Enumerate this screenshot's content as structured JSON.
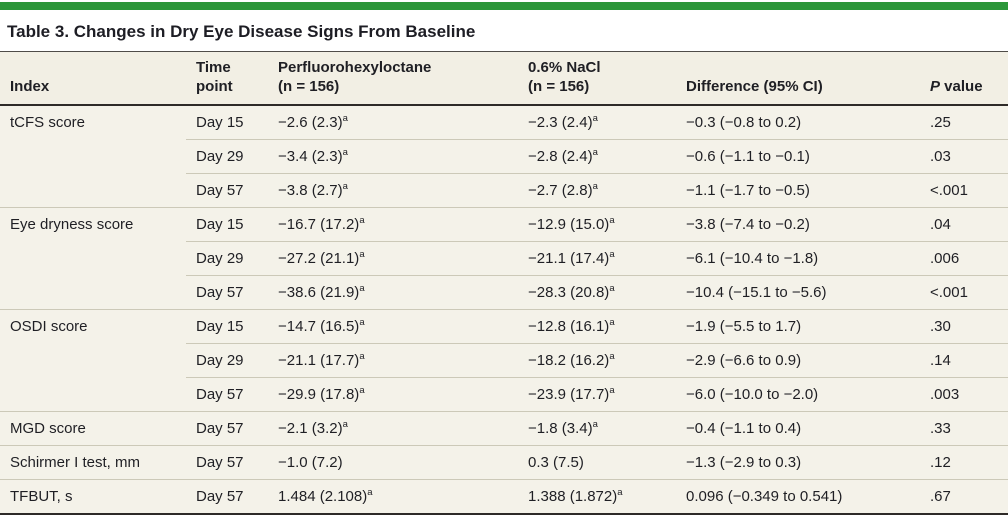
{
  "accent_color": "#2b9639",
  "colors": {
    "header_background": "#f2efe4",
    "row_background": "#f4f2e9",
    "rule_dark": "#2e2a28",
    "rule_light": "#ccc9b8",
    "text": "#1f1f24"
  },
  "table": {
    "title": "Table 3. Changes in Dry Eye Disease Signs From Baseline",
    "headers": {
      "index": "Index",
      "time_line1": "Time",
      "time_line2": "point",
      "drug_line1": "Perfluorohexyloctane",
      "drug_line2": "(n = 156)",
      "nacl_line1": "0.6% NaCl",
      "nacl_line2": "(n = 156)",
      "difference": "Difference (95% CI)",
      "p_italic": "P",
      "p_rest": " value"
    },
    "footnote_marker": "a",
    "groups": [
      {
        "index": "tCFS score",
        "rows": [
          {
            "time": "Day 15",
            "drug": "−2.6 (2.3)",
            "drug_sup": "a",
            "nacl": "−2.3 (2.4)",
            "nacl_sup": "a",
            "diff": "−0.3 (−0.8 to 0.2)",
            "p": ".25"
          },
          {
            "time": "Day 29",
            "drug": "−3.4 (2.3)",
            "drug_sup": "a",
            "nacl": "−2.8 (2.4)",
            "nacl_sup": "a",
            "diff": "−0.6 (−1.1 to −0.1)",
            "p": ".03"
          },
          {
            "time": "Day 57",
            "drug": "−3.8 (2.7)",
            "drug_sup": "a",
            "nacl": "−2.7 (2.8)",
            "nacl_sup": "a",
            "diff": "−1.1 (−1.7 to −0.5)",
            "p": "<.001"
          }
        ]
      },
      {
        "index": "Eye dryness score",
        "rows": [
          {
            "time": "Day 15",
            "drug": "−16.7 (17.2)",
            "drug_sup": "a",
            "nacl": "−12.9 (15.0)",
            "nacl_sup": "a",
            "diff": "−3.8 (−7.4 to −0.2)",
            "p": ".04"
          },
          {
            "time": "Day 29",
            "drug": "−27.2 (21.1)",
            "drug_sup": "a",
            "nacl": "−21.1 (17.4)",
            "nacl_sup": "a",
            "diff": "−6.1 (−10.4 to −1.8)",
            "p": ".006"
          },
          {
            "time": "Day 57",
            "drug": "−38.6 (21.9)",
            "drug_sup": "a",
            "nacl": "−28.3 (20.8)",
            "nacl_sup": "a",
            "diff": "−10.4 (−15.1 to −5.6)",
            "p": "<.001"
          }
        ]
      },
      {
        "index": "OSDI score",
        "rows": [
          {
            "time": "Day 15",
            "drug": "−14.7 (16.5)",
            "drug_sup": "a",
            "nacl": "−12.8 (16.1)",
            "nacl_sup": "a",
            "diff": "−1.9 (−5.5 to 1.7)",
            "p": ".30"
          },
          {
            "time": "Day 29",
            "drug": "−21.1 (17.7)",
            "drug_sup": "a",
            "nacl": "−18.2 (16.2)",
            "nacl_sup": "a",
            "diff": "−2.9 (−6.6 to 0.9)",
            "p": ".14"
          },
          {
            "time": "Day 57",
            "drug": "−29.9 (17.8)",
            "drug_sup": "a",
            "nacl": "−23.9 (17.7)",
            "nacl_sup": "a",
            "diff": "−6.0 (−10.0 to −2.0)",
            "p": ".003"
          }
        ]
      },
      {
        "index": "MGD score",
        "rows": [
          {
            "time": "Day 57",
            "drug": "−2.1 (3.2)",
            "drug_sup": "a",
            "nacl": "−1.8 (3.4)",
            "nacl_sup": "a",
            "diff": "−0.4 (−1.1 to 0.4)",
            "p": ".33"
          }
        ]
      },
      {
        "index": "Schirmer I test, mm",
        "rows": [
          {
            "time": "Day 57",
            "drug": "−1.0 (7.2)",
            "drug_sup": "",
            "nacl": "0.3 (7.5)",
            "nacl_sup": "",
            "diff": "−1.3 (−2.9 to 0.3)",
            "p": ".12"
          }
        ]
      },
      {
        "index": "TFBUT, s",
        "rows": [
          {
            "time": "Day 57",
            "drug": "1.484 (2.108)",
            "drug_sup": "a",
            "nacl": "1.388 (1.872)",
            "nacl_sup": "a",
            "diff": "0.096 (−0.349 to 0.541)",
            "p": ".67"
          }
        ]
      }
    ]
  }
}
